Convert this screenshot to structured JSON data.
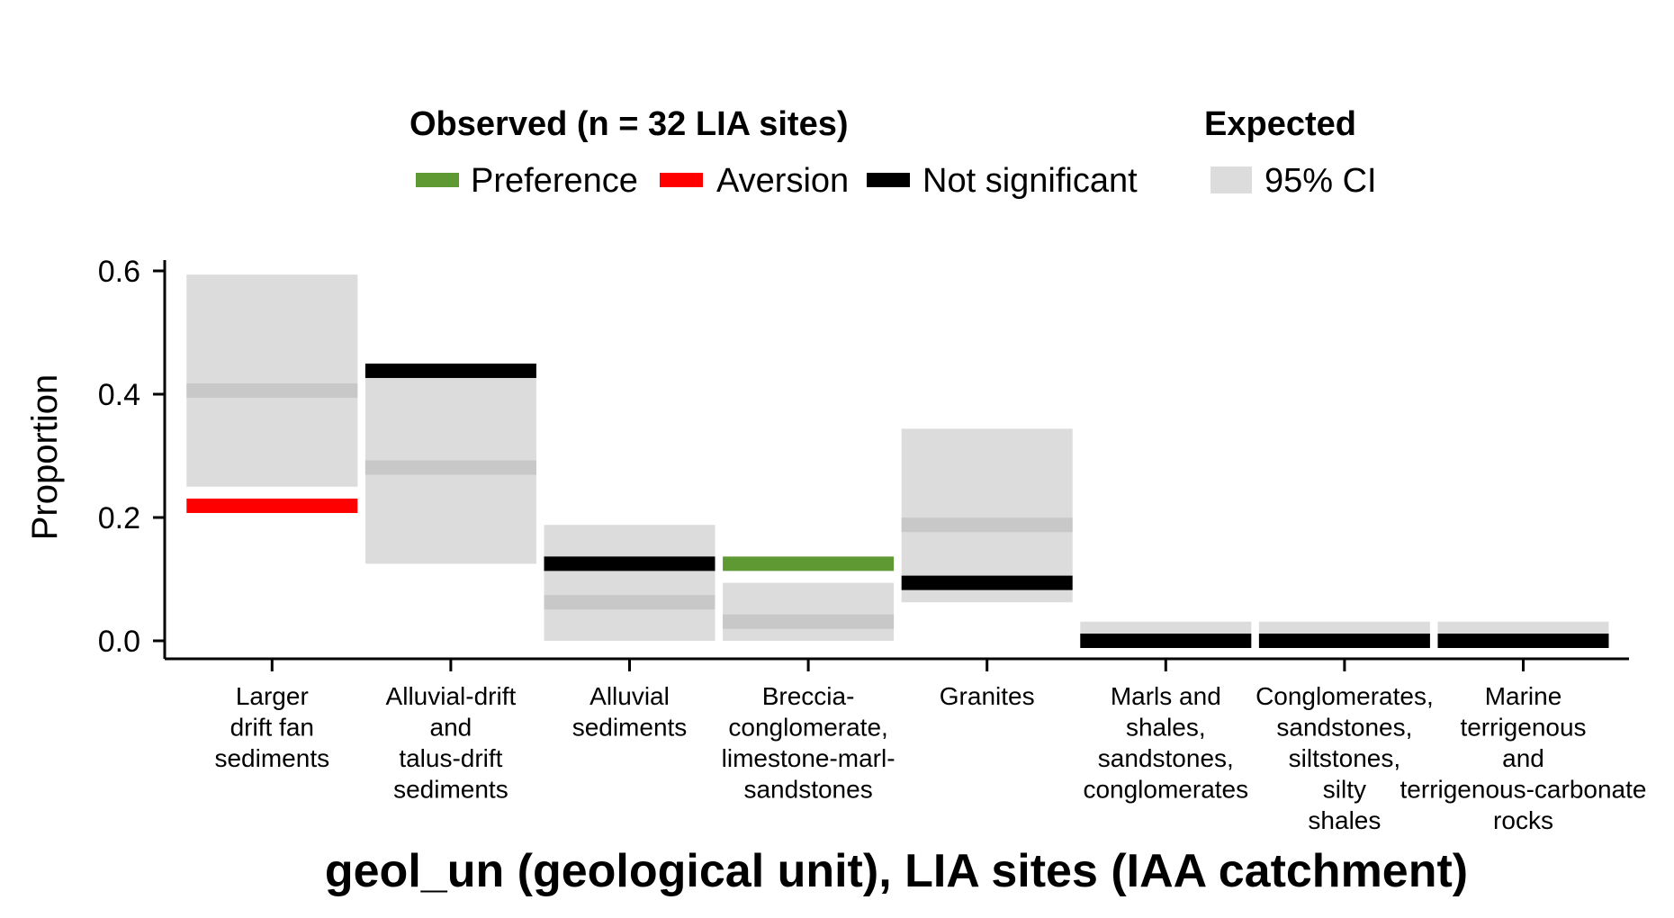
{
  "chart_data": {
    "type": "bar",
    "title": "",
    "xlabel": "geol_un (geological unit), LIA sites (IAA catchment)",
    "ylabel": "Proportion",
    "ylim": [
      0,
      0.62
    ],
    "yticks": [
      "0.0",
      "0.2",
      "0.4",
      "0.6"
    ],
    "ytick_values": [
      0.0,
      0.2,
      0.4,
      0.6
    ],
    "grid": false,
    "legend": {
      "observed_title": "Observed (n = 32 LIA sites)",
      "expected_title": "Expected",
      "items": [
        {
          "label": "Preference",
          "color": "#5f9933"
        },
        {
          "label": "Aversion",
          "color": "#ff0000"
        },
        {
          "label": "Not significant",
          "color": "#000000"
        }
      ],
      "ci_label": "95% CI",
      "ci_color": "#dcdcdc",
      "placement": "top"
    },
    "categories": [
      {
        "label_lines": [
          "Larger",
          "drift fan",
          "sediments"
        ],
        "observed": 0.219,
        "status": "Aversion",
        "expected": 0.406,
        "ci": [
          0.25,
          0.594
        ]
      },
      {
        "label_lines": [
          "Alluvial-drift",
          "and",
          "talus-drift",
          "sediments"
        ],
        "observed": 0.438,
        "status": "Not significant",
        "expected": 0.281,
        "ci": [
          0.125,
          0.438
        ]
      },
      {
        "label_lines": [
          "Alluvial",
          "sediments"
        ],
        "observed": 0.125,
        "status": "Not significant",
        "expected": 0.0625,
        "ci": [
          0.0,
          0.188
        ]
      },
      {
        "label_lines": [
          "Breccia-",
          "conglomerate,",
          "limestone-marl-",
          "sandstones"
        ],
        "observed": 0.125,
        "status": "Preference",
        "expected": 0.031,
        "ci": [
          0.0,
          0.094
        ]
      },
      {
        "label_lines": [
          "Granites"
        ],
        "observed": 0.094,
        "status": "Not significant",
        "expected": 0.188,
        "ci": [
          0.0625,
          0.344
        ]
      },
      {
        "label_lines": [
          "Marls and",
          "shales,",
          "sandstones,",
          "conglomerates"
        ],
        "observed": 0.0,
        "status": "Not significant",
        "expected": 0.0,
        "ci": [
          0.0,
          0.031
        ]
      },
      {
        "label_lines": [
          "Conglomerates,",
          "sandstones,",
          "siltstones,",
          "silty",
          "shales"
        ],
        "observed": 0.0,
        "status": "Not significant",
        "expected": 0.0,
        "ci": [
          0.0,
          0.031
        ]
      },
      {
        "label_lines": [
          "Marine",
          "terrigenous",
          "and",
          "terrigenous-carbonate",
          "rocks"
        ],
        "observed": 0.0,
        "status": "Not significant",
        "expected": 0.0,
        "ci": [
          0.0,
          0.031
        ]
      }
    ]
  }
}
